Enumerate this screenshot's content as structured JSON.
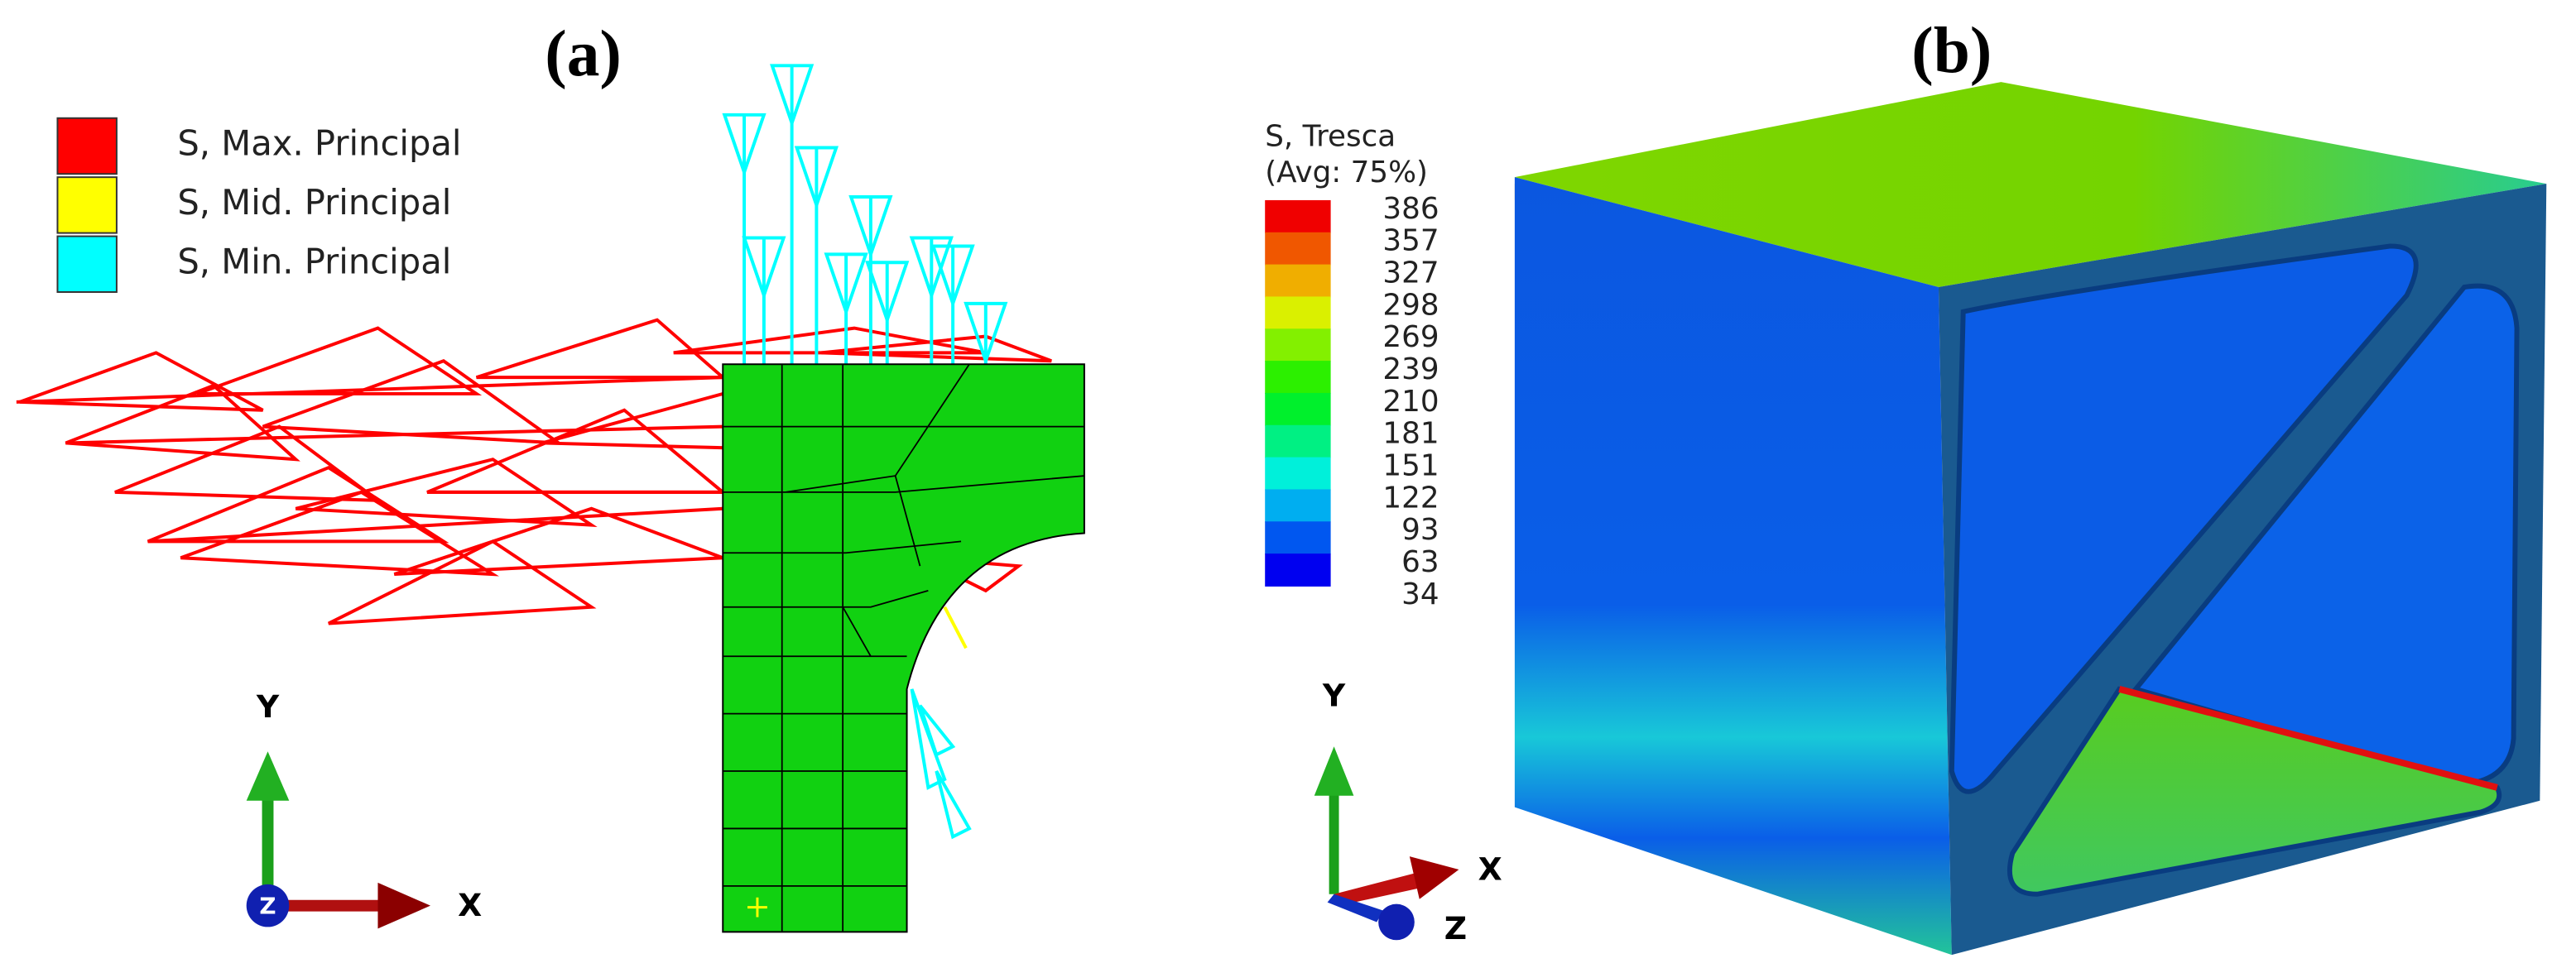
{
  "panels": [
    {
      "label": "(a)",
      "legend": [
        {
          "label": "S, Max. Principal",
          "color": "#ff0000"
        },
        {
          "label": "S, Mid. Principal",
          "color": "#ffff00"
        },
        {
          "label": "S, Min. Principal",
          "color": "#00ffff"
        }
      ],
      "axes": {
        "x": "X",
        "y": "Y",
        "z": "Z"
      }
    },
    {
      "label": "(b)",
      "contour_legend": {
        "title": "S, Tresca",
        "subtitle": "(Avg: 75%)",
        "values": [
          386,
          357,
          327,
          298,
          269,
          239,
          210,
          181,
          151,
          122,
          93,
          63,
          34
        ]
      },
      "axes": {
        "x": "X",
        "y": "Y",
        "z": "Z"
      }
    }
  ]
}
